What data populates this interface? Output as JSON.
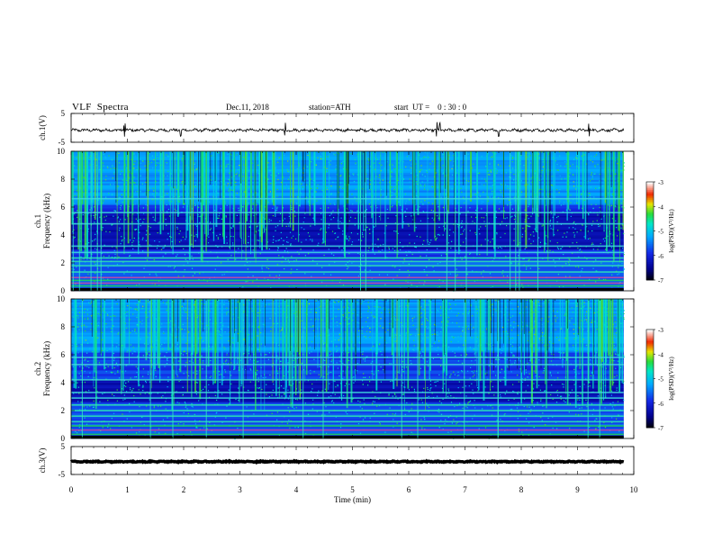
{
  "header": {
    "title": "VLF  Spectra",
    "date": "Dec.11, 2018",
    "station": "station=ATH",
    "start_ut": "start  UT =    0 : 30 : 0"
  },
  "colors": {
    "background": "#ffffff",
    "axis": "#000000",
    "spectrogram_base": "#1a2fd0",
    "spectrogram_high": "#26e0c8"
  },
  "chart_data": [
    {
      "type": "line",
      "panel": "ch1-waveform",
      "ylabel": "ch.1(V)",
      "ylim": [
        -5,
        5
      ],
      "yticks": [
        "5",
        "-5"
      ],
      "xlim": [
        0,
        10
      ],
      "trace": {
        "center": -0.8,
        "noise_amplitude": 0.4,
        "spikes_at_min": [
          0.95,
          1.95,
          3.8,
          6.5,
          6.55,
          7.6,
          9.2
        ]
      }
    },
    {
      "type": "heatmap",
      "panel": "ch1-spectrogram",
      "ylabel": "ch.1\nFrequency  (kHz)",
      "ylabel_lines": [
        "ch.1",
        "Frequency  (kHz)"
      ],
      "ylim": [
        0,
        10
      ],
      "yticks": [
        "0",
        "2",
        "4",
        "6",
        "8",
        "10"
      ],
      "xlim": [
        0,
        10
      ],
      "colorbar": {
        "label": "log(PSD)(V²/Hz)",
        "range": [
          -7,
          -3
        ],
        "ticks": [
          "-3",
          "-4",
          "-5",
          "-6",
          "-7"
        ]
      },
      "bands_khz": [
        0.35,
        0.55,
        0.75,
        0.95,
        1.35,
        1.8,
        2.1,
        2.35,
        2.75,
        3.2,
        4.8,
        5.6,
        6.6
      ],
      "quiet_zone_khz": [
        3.0,
        5.6
      ]
    },
    {
      "type": "heatmap",
      "panel": "ch2-spectrogram",
      "ylabel": "ch.2\nFrequency  (kHz)",
      "ylabel_lines": [
        "ch.2",
        "Frequency  (kHz)"
      ],
      "ylim": [
        0,
        10
      ],
      "yticks": [
        "0",
        "2",
        "4",
        "6",
        "8",
        "10"
      ],
      "xlim": [
        0,
        10
      ],
      "colorbar": {
        "label": "log(PSD)(V²/Hz)",
        "range": [
          -7,
          -3
        ],
        "ticks": [
          "-3",
          "-4",
          "-5",
          "-6",
          "-7"
        ]
      },
      "bands_khz": [
        0.3,
        0.6,
        0.9,
        1.2,
        1.6,
        2.0,
        2.4,
        2.9,
        3.3,
        4.2,
        5.3,
        5.8
      ],
      "quiet_zone_khz": [
        2.5,
        4.2
      ]
    },
    {
      "type": "line",
      "panel": "ch3-waveform",
      "ylabel": "ch.3(V)",
      "ylim": [
        -5,
        5
      ],
      "yticks": [
        "5",
        "-5"
      ],
      "xlim": [
        0,
        10
      ],
      "trace": {
        "center": -0.4,
        "noise_amplitude": 0.15,
        "spikes_at_min": []
      }
    }
  ],
  "x_axis": {
    "label": "Time  (min)",
    "ticks": [
      "0",
      "1",
      "2",
      "3",
      "4",
      "5",
      "6",
      "7",
      "8",
      "9",
      "10"
    ],
    "data_end_min": 9.82
  }
}
